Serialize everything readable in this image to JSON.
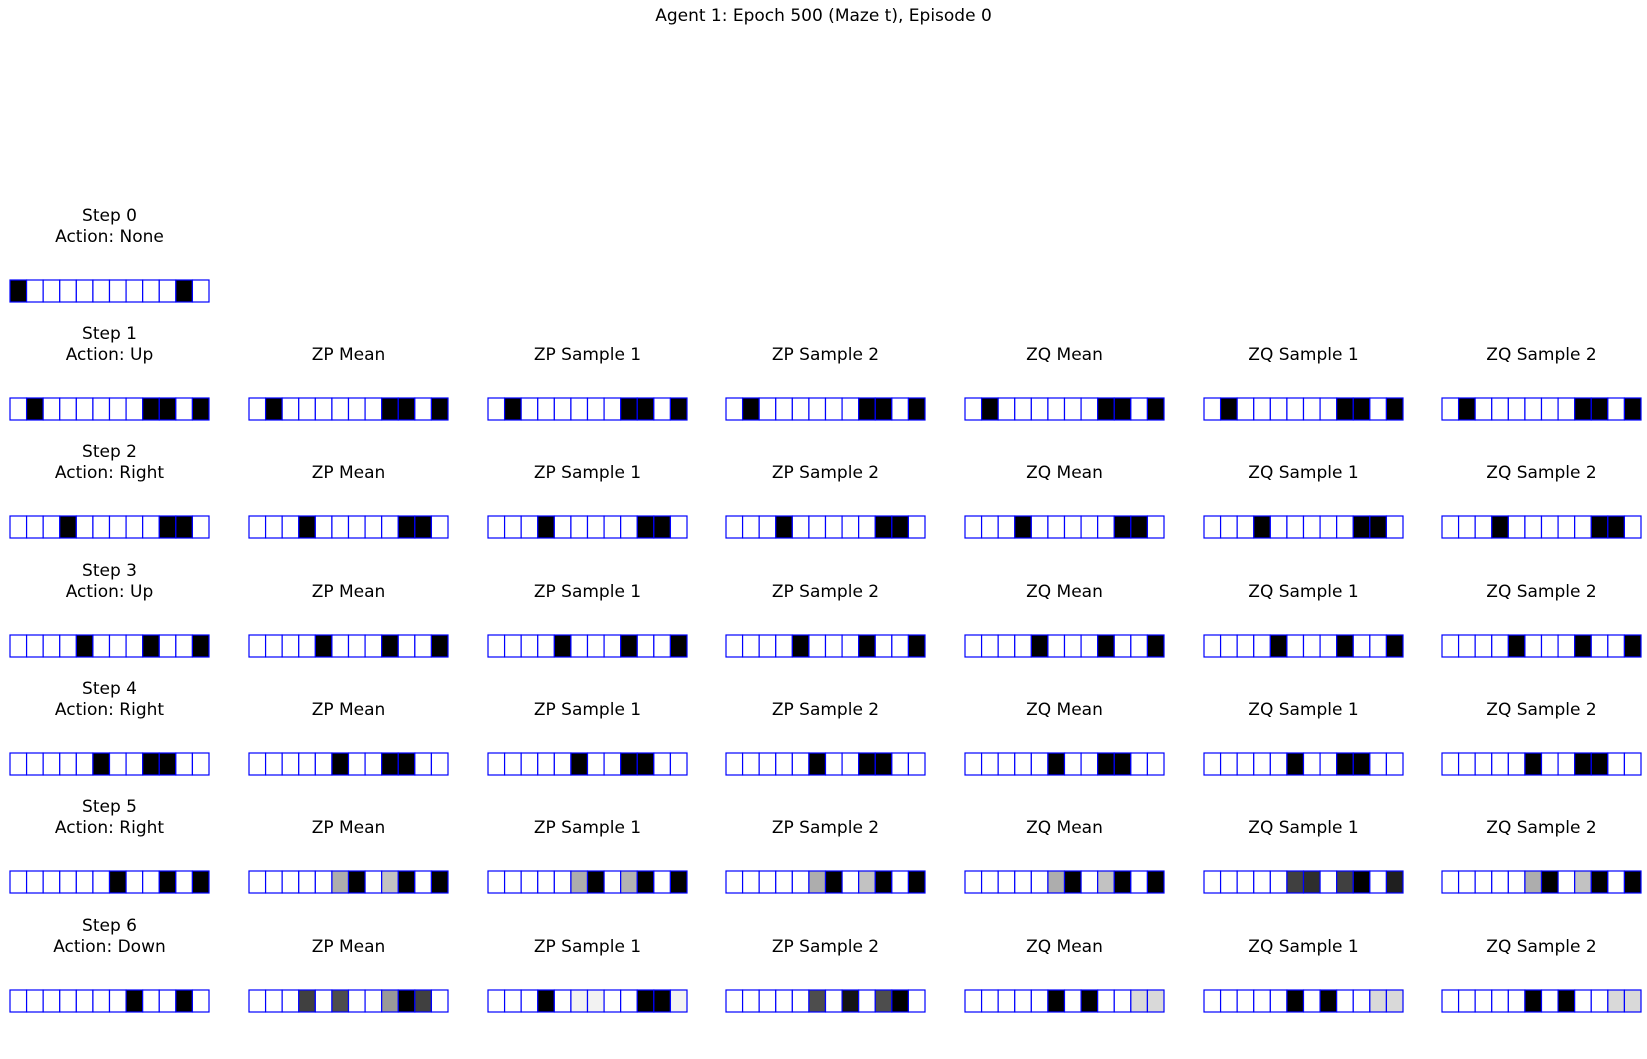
{
  "figure": {
    "title": "Agent 1: Epoch 500 (Maze t), Episode 0",
    "cell_border_color": "#0000ff",
    "num_cells": 12
  },
  "rows": [
    {
      "step_label": "Step 0",
      "action_label": "Action: None",
      "observation": [
        0,
        1,
        1,
        1,
        1,
        1,
        1,
        1,
        1,
        1,
        0,
        1
      ],
      "panels": []
    },
    {
      "step_label": "Step 1",
      "action_label": "Action: Up",
      "observation": [
        1,
        0,
        1,
        1,
        1,
        1,
        1,
        1,
        0,
        0,
        1,
        0
      ],
      "panels": [
        {
          "label": "ZP Mean",
          "values": [
            1,
            0,
            1,
            1,
            1,
            1,
            1,
            1,
            0,
            0,
            1,
            0
          ]
        },
        {
          "label": "ZP Sample 1",
          "values": [
            1,
            0,
            1,
            1,
            1,
            1,
            1,
            1,
            0,
            0,
            1,
            0
          ]
        },
        {
          "label": "ZP Sample 2",
          "values": [
            1,
            0,
            1,
            1,
            1,
            1,
            1,
            1,
            0,
            0,
            1,
            0
          ]
        },
        {
          "label": "ZQ Mean",
          "values": [
            1,
            0,
            1,
            1,
            1,
            1,
            1,
            1,
            0,
            0,
            1,
            0
          ]
        },
        {
          "label": "ZQ Sample 1",
          "values": [
            1,
            0,
            1,
            1,
            1,
            1,
            1,
            1,
            0,
            0,
            1,
            0
          ]
        },
        {
          "label": "ZQ Sample 2",
          "values": [
            1,
            0,
            1,
            1,
            1,
            1,
            1,
            1,
            0,
            0,
            1,
            0
          ]
        }
      ]
    },
    {
      "step_label": "Step 2",
      "action_label": "Action: Right",
      "observation": [
        1,
        1,
        1,
        0,
        1,
        1,
        1,
        1,
        1,
        0,
        0,
        1
      ],
      "panels": [
        {
          "label": "ZP Mean",
          "values": [
            1,
            1,
            1,
            0,
            1,
            1,
            1,
            1,
            1,
            0,
            0,
            1
          ]
        },
        {
          "label": "ZP Sample 1",
          "values": [
            1,
            1,
            1,
            0,
            1,
            1,
            1,
            1,
            1,
            0,
            0,
            1
          ]
        },
        {
          "label": "ZP Sample 2",
          "values": [
            1,
            1,
            1,
            0,
            1,
            1,
            1,
            1,
            1,
            0,
            0,
            1
          ]
        },
        {
          "label": "ZQ Mean",
          "values": [
            1,
            1,
            1,
            0,
            1,
            1,
            1,
            1,
            1,
            0,
            0,
            1
          ]
        },
        {
          "label": "ZQ Sample 1",
          "values": [
            1,
            1,
            1,
            0,
            1,
            1,
            1,
            1,
            1,
            0,
            0,
            1
          ]
        },
        {
          "label": "ZQ Sample 2",
          "values": [
            1,
            1,
            1,
            0,
            1,
            1,
            1,
            1,
            1,
            0,
            0,
            1
          ]
        }
      ]
    },
    {
      "step_label": "Step 3",
      "action_label": "Action: Up",
      "observation": [
        1,
        1,
        1,
        1,
        0,
        1,
        1,
        1,
        0,
        1,
        1,
        0
      ],
      "panels": [
        {
          "label": "ZP Mean",
          "values": [
            1,
            1,
            1,
            1,
            0,
            1,
            1,
            1,
            0,
            1,
            1,
            0
          ]
        },
        {
          "label": "ZP Sample 1",
          "values": [
            1,
            1,
            1,
            1,
            0,
            1,
            1,
            1,
            0,
            1,
            1,
            0
          ]
        },
        {
          "label": "ZP Sample 2",
          "values": [
            1,
            1,
            1,
            1,
            0,
            1,
            1,
            1,
            0,
            1,
            1,
            0
          ]
        },
        {
          "label": "ZQ Mean",
          "values": [
            1,
            1,
            1,
            1,
            0,
            1,
            1,
            1,
            0,
            1,
            1,
            0
          ]
        },
        {
          "label": "ZQ Sample 1",
          "values": [
            1,
            1,
            1,
            1,
            0,
            1,
            1,
            1,
            0,
            1,
            1,
            0
          ]
        },
        {
          "label": "ZQ Sample 2",
          "values": [
            1,
            1,
            1,
            1,
            0,
            1,
            1,
            1,
            0,
            1,
            1,
            0
          ]
        }
      ]
    },
    {
      "step_label": "Step 4",
      "action_label": "Action: Right",
      "observation": [
        1,
        1,
        1,
        1,
        1,
        0,
        1,
        1,
        0,
        0,
        1,
        1
      ],
      "panels": [
        {
          "label": "ZP Mean",
          "values": [
            1,
            1,
            1,
            1,
            1,
            0,
            1,
            1,
            0,
            0,
            1,
            1
          ]
        },
        {
          "label": "ZP Sample 1",
          "values": [
            1,
            1,
            1,
            1,
            1,
            0,
            1,
            1,
            0,
            0,
            1,
            1
          ]
        },
        {
          "label": "ZP Sample 2",
          "values": [
            1,
            1,
            1,
            1,
            1,
            0,
            1,
            1,
            0,
            0,
            1,
            1
          ]
        },
        {
          "label": "ZQ Mean",
          "values": [
            1,
            1,
            1,
            1,
            1,
            0,
            1,
            1,
            0,
            0,
            1,
            1
          ]
        },
        {
          "label": "ZQ Sample 1",
          "values": [
            1,
            1,
            1,
            1,
            1,
            0,
            1,
            1,
            0,
            0,
            1,
            1
          ]
        },
        {
          "label": "ZQ Sample 2",
          "values": [
            1,
            1,
            1,
            1,
            1,
            0,
            1,
            1,
            0,
            0,
            1,
            1
          ]
        }
      ]
    },
    {
      "step_label": "Step 5",
      "action_label": "Action: Right",
      "observation": [
        1,
        1,
        1,
        1,
        1,
        1,
        0,
        1,
        1,
        0,
        1,
        0
      ],
      "panels": [
        {
          "label": "ZP Mean",
          "values": [
            1,
            1,
            1,
            1,
            1,
            0.68,
            0,
            1,
            0.76,
            0,
            1,
            0
          ]
        },
        {
          "label": "ZP Sample 1",
          "values": [
            1,
            1,
            1,
            1,
            1,
            0.68,
            0,
            1,
            0.7,
            0,
            1,
            0
          ]
        },
        {
          "label": "ZP Sample 2",
          "values": [
            1,
            1,
            1,
            1,
            1,
            0.68,
            0,
            1,
            0.76,
            0,
            1,
            0
          ]
        },
        {
          "label": "ZQ Mean",
          "values": [
            1,
            1,
            1,
            1,
            1,
            0.68,
            0,
            1,
            0.76,
            0,
            1,
            0
          ]
        },
        {
          "label": "ZQ Sample 1",
          "values": [
            1,
            1,
            1,
            1,
            1,
            0.25,
            0.18,
            1,
            0.25,
            0,
            1,
            0.12
          ]
        },
        {
          "label": "ZQ Sample 2",
          "values": [
            1,
            1,
            1,
            1,
            1,
            0.68,
            0,
            1,
            0.76,
            0,
            1,
            0
          ]
        }
      ]
    },
    {
      "step_label": "Step 6",
      "action_label": "Action: Down",
      "observation": [
        1,
        1,
        1,
        1,
        1,
        1,
        1,
        0,
        1,
        1,
        0,
        1
      ],
      "panels": [
        {
          "label": "ZP Mean",
          "values": [
            1,
            1,
            1,
            0.25,
            1,
            0.3,
            1,
            1,
            0.6,
            0,
            0.25,
            1
          ]
        },
        {
          "label": "ZP Sample 1",
          "values": [
            1,
            1,
            1,
            0,
            1,
            0.95,
            0.95,
            1,
            1,
            0,
            0,
            0.95
          ]
        },
        {
          "label": "ZP Sample 2",
          "values": [
            1,
            1,
            1,
            1,
            1,
            0.3,
            1,
            0.08,
            1,
            0.3,
            0,
            1
          ]
        },
        {
          "label": "ZQ Mean",
          "values": [
            1,
            1,
            1,
            1,
            1,
            0,
            1,
            0,
            1,
            1,
            0.85,
            0.85
          ]
        },
        {
          "label": "ZQ Sample 1",
          "values": [
            1,
            1,
            1,
            1,
            1,
            0,
            1,
            0,
            1,
            1,
            0.85,
            0.85
          ]
        },
        {
          "label": "ZQ Sample 2",
          "values": [
            1,
            1,
            1,
            1,
            1,
            0,
            1,
            0,
            1,
            1,
            0.85,
            0.85
          ]
        }
      ]
    }
  ]
}
